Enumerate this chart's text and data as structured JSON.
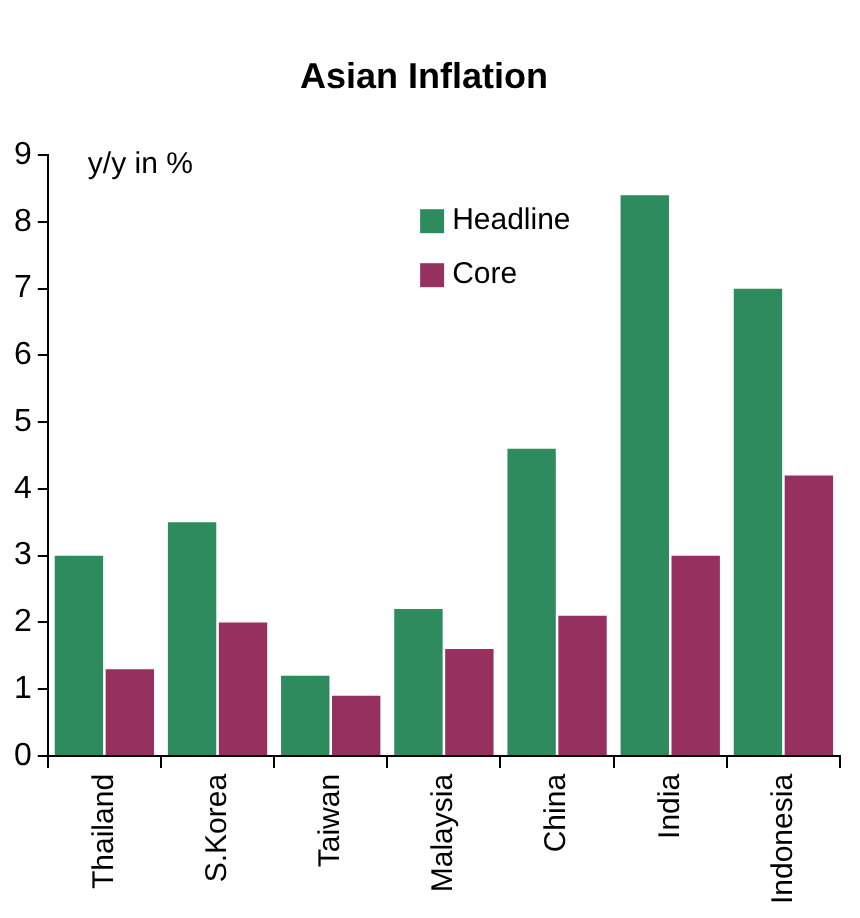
{
  "chart_data": {
    "type": "bar",
    "title": "Asian Inflation",
    "ylabel": "y/y in %",
    "categories": [
      "Thailand",
      "S.Korea",
      "Taiwan",
      "Malaysia",
      "China",
      "India",
      "Indonesia"
    ],
    "series": [
      {
        "name": "Headline",
        "color": "#2e8b5e",
        "values": [
          3.0,
          3.5,
          1.2,
          2.2,
          4.6,
          8.4,
          7.0
        ]
      },
      {
        "name": "Core",
        "color": "#96305e",
        "values": [
          1.3,
          2.0,
          0.9,
          1.6,
          2.1,
          3.0,
          4.2
        ]
      }
    ],
    "ylim": [
      0,
      9
    ],
    "yticks": [
      0,
      1,
      2,
      3,
      4,
      5,
      6,
      7,
      8,
      9
    ],
    "grid": false,
    "legend": "top"
  }
}
